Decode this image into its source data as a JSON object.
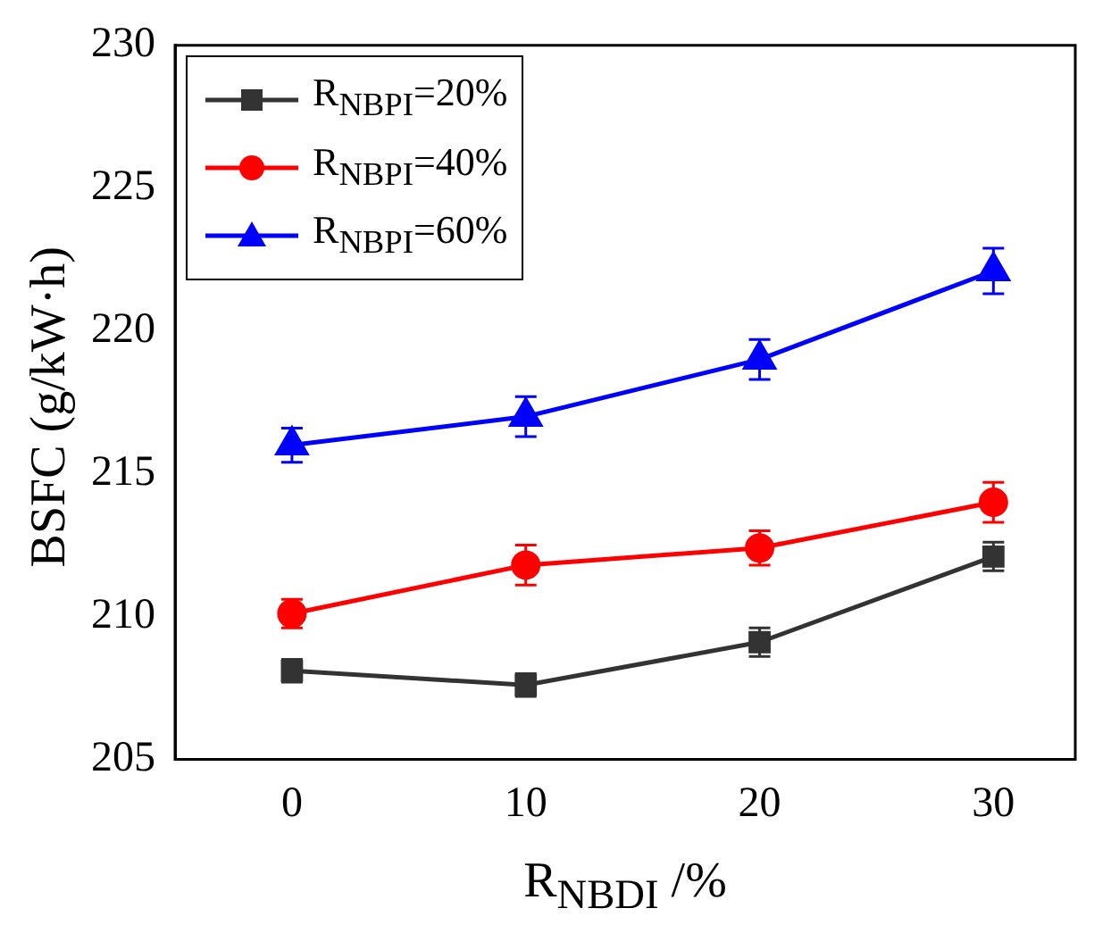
{
  "chart_data": {
    "type": "line",
    "xlabel": "R$_{NBDI}$ /%",
    "ylabel": "BSFC (g/kW·h)",
    "x": [
      0,
      10,
      20,
      30
    ],
    "xlim": [
      -5,
      33.5
    ],
    "xticks": [
      0,
      10,
      20,
      30
    ],
    "ylim": [
      205,
      230
    ],
    "yticks": [
      205,
      210,
      215,
      220,
      225,
      230
    ],
    "legend": "top left",
    "grid": false,
    "line_style": "solid",
    "series": [
      {
        "name": "R$_{NBPI}$=20%",
        "color": "#333333",
        "marker": "square",
        "values": [
          208.1,
          207.6,
          209.1,
          212.1
        ],
        "errors": [
          0.4,
          0.4,
          0.5,
          0.5
        ]
      },
      {
        "name": "R$_{NBPI}$=40%",
        "color": "#ff0000",
        "marker": "circle",
        "values": [
          210.1,
          211.8,
          212.4,
          214.0
        ],
        "errors": [
          0.5,
          0.7,
          0.6,
          0.7
        ]
      },
      {
        "name": "R$_{NBPI}$=60%",
        "color": "#0000ff",
        "marker": "triangle",
        "values": [
          216.0,
          217.0,
          219.0,
          222.1
        ],
        "errors": [
          0.6,
          0.7,
          0.7,
          0.8
        ]
      }
    ]
  }
}
